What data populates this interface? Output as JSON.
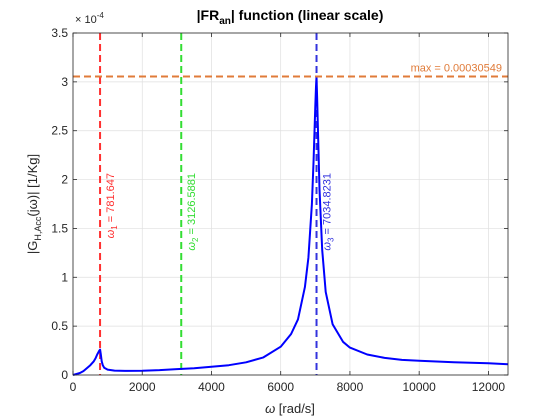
{
  "chart_data": {
    "type": "line",
    "title": {
      "main": "|FR",
      "sub": "an",
      "rest": "| function (linear scale)"
    },
    "xlabel": {
      "sym": "ω",
      "rest": " [rad/s]"
    },
    "ylabel": {
      "p1": "|G",
      "sub": "H,Acc",
      "p2": "(jω)| [1/Kg]"
    },
    "exponent_label": {
      "base": "× 10",
      "exp": "-4"
    },
    "xlim": [
      0,
      12566
    ],
    "ylim": [
      0,
      3.5
    ],
    "y_scale": "1e-4",
    "grid": true,
    "x_ticks": [
      0,
      2000,
      4000,
      6000,
      8000,
      10000,
      12000
    ],
    "x_tick_labels": [
      "0",
      "2000",
      "4000",
      "6000",
      "8000",
      "10000",
      "12000"
    ],
    "y_ticks": [
      0,
      0.5,
      1,
      1.5,
      2,
      2.5,
      3,
      3.5
    ],
    "y_tick_labels": [
      "0",
      "0.5",
      "1",
      "1.5",
      "2",
      "2.5",
      "3",
      "3.5"
    ],
    "series": [
      {
        "color": "#0000ff",
        "x": [
          0,
          100,
          200,
          300,
          400,
          500,
          600,
          650,
          700,
          730,
          760,
          781.6,
          800,
          830,
          860,
          900,
          1000,
          1200,
          1500,
          2000,
          2500,
          3000,
          3500,
          4000,
          4500,
          5000,
          5500,
          6000,
          6300,
          6500,
          6700,
          6800,
          6900,
          6950,
          7000,
          7020,
          7034.8,
          7050,
          7080,
          7120,
          7200,
          7300,
          7500,
          7800,
          8000,
          8500,
          9000,
          9500,
          10000,
          11000,
          12000,
          12566
        ],
        "y": [
          0,
          0.01,
          0.02,
          0.04,
          0.07,
          0.1,
          0.14,
          0.17,
          0.21,
          0.23,
          0.25,
          0.26,
          0.22,
          0.14,
          0.1,
          0.075,
          0.055,
          0.045,
          0.042,
          0.044,
          0.05,
          0.06,
          0.07,
          0.085,
          0.1,
          0.13,
          0.18,
          0.29,
          0.42,
          0.57,
          0.9,
          1.2,
          1.75,
          2.2,
          2.75,
          2.95,
          3.055,
          2.85,
          2.45,
          1.9,
          1.28,
          0.85,
          0.52,
          0.34,
          0.28,
          0.21,
          0.175,
          0.155,
          0.145,
          0.13,
          0.12,
          0.11
        ]
      }
    ],
    "max_line": {
      "y": 3.0549,
      "label": "max = 0.00030549",
      "color": "#e07b39"
    },
    "vlines": [
      {
        "x": 781.647,
        "color": "#ff3030",
        "label_sym": "ω",
        "label_sub": "1",
        "label_rest": " = 781.647"
      },
      {
        "x": 3126.5881,
        "color": "#33dd33",
        "label_sym": "ω",
        "label_sub": "2",
        "label_rest": " = 3126.5881"
      },
      {
        "x": 7034.8231,
        "color": "#3333dd",
        "label_sym": "ω",
        "label_sub": "3",
        "label_rest": " = 7034.8231"
      }
    ]
  }
}
